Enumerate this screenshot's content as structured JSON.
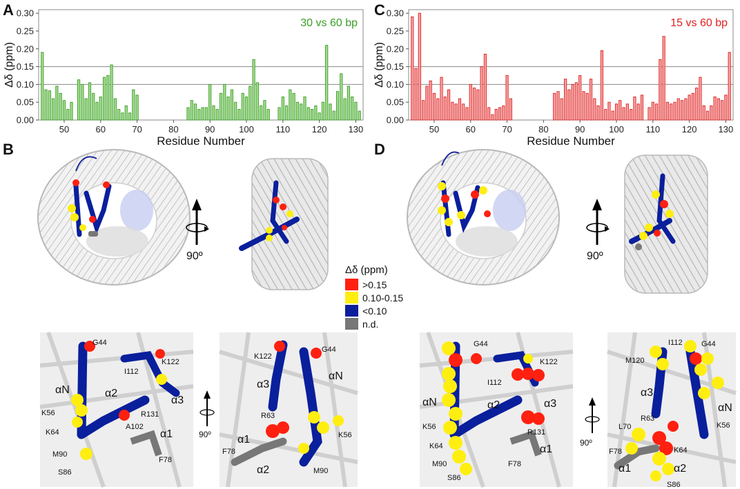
{
  "panels": {
    "A": "A",
    "B": "B",
    "C": "C",
    "D": "D"
  },
  "chart_data": [
    {
      "type": "bar",
      "panel": "A",
      "title": "30 vs 60 bp",
      "ylabel": "Δδ (ppm)",
      "xlabel": "Residue Number",
      "xlim": [
        43,
        132
      ],
      "ylim": [
        0,
        0.31
      ],
      "yticks": [
        "0.00",
        "0.05",
        "0.10",
        "0.15",
        "0.20",
        "0.25",
        "0.30"
      ],
      "xticks": [
        50,
        60,
        70,
        80,
        90,
        100,
        110,
        120,
        130
      ],
      "reference_lines": [
        0.1,
        0.15
      ],
      "color": "#3a9d28",
      "fill": "#a5dc8f",
      "x": [
        44,
        45,
        46,
        47,
        48,
        49,
        50,
        51,
        52,
        54,
        55,
        56,
        57,
        58,
        59,
        60,
        61,
        62,
        63,
        64,
        65,
        66,
        67,
        68,
        69,
        70,
        84,
        85,
        86,
        87,
        88,
        89,
        90,
        91,
        92,
        93,
        94,
        95,
        96,
        97,
        98,
        99,
        100,
        101,
        102,
        103,
        104,
        105,
        106,
        109,
        110,
        111,
        112,
        113,
        114,
        115,
        116,
        117,
        118,
        119,
        120,
        121,
        122,
        123,
        124,
        125,
        126,
        127,
        128,
        129,
        130,
        131
      ],
      "values": [
        0.19,
        0.085,
        0.082,
        0.06,
        0.095,
        0.075,
        0.055,
        0.03,
        0.05,
        0.113,
        0.1,
        0.06,
        0.105,
        0.075,
        0.05,
        0.065,
        0.12,
        0.125,
        0.155,
        0.06,
        0.03,
        0.02,
        0.04,
        0.02,
        0.085,
        0.07,
        0.035,
        0.055,
        0.045,
        0.03,
        0.035,
        0.035,
        0.1,
        0.04,
        0.03,
        0.075,
        0.1,
        0.065,
        0.085,
        0.05,
        0.03,
        0.075,
        0.065,
        0.095,
        0.17,
        0.105,
        0.04,
        0.055,
        0.03,
        0.035,
        0.065,
        0.04,
        0.085,
        0.075,
        0.05,
        0.045,
        0.065,
        0.035,
        0.03,
        0.04,
        0.02,
        0.05,
        0.21,
        0.045,
        0.025,
        0.08,
        0.13,
        0.06,
        0.095,
        0.065,
        0.05,
        0.025
      ]
    },
    {
      "type": "bar",
      "panel": "C",
      "title": "15 vs 60 bp",
      "ylabel": "Δδ (ppm)",
      "xlabel": "Residue Number",
      "xlim": [
        43,
        132
      ],
      "ylim": [
        0,
        0.31
      ],
      "yticks": [
        "0.00",
        "0.05",
        "0.10",
        "0.15",
        "0.20",
        "0.25",
        "0.30"
      ],
      "xticks": [
        50,
        60,
        70,
        80,
        90,
        100,
        110,
        120,
        130
      ],
      "reference_lines": [
        0.1,
        0.15
      ],
      "color": "#e02020",
      "fill": "#f4a6a6",
      "x": [
        44,
        45,
        46,
        47,
        48,
        49,
        50,
        51,
        52,
        53,
        54,
        55,
        56,
        57,
        58,
        59,
        60,
        61,
        62,
        63,
        64,
        65,
        66,
        67,
        68,
        69,
        70,
        71,
        83,
        84,
        85,
        86,
        87,
        88,
        89,
        90,
        91,
        92,
        93,
        94,
        95,
        96,
        97,
        98,
        99,
        100,
        101,
        102,
        103,
        104,
        105,
        106,
        107,
        109,
        110,
        111,
        112,
        113,
        114,
        115,
        116,
        117,
        118,
        119,
        120,
        121,
        122,
        123,
        124,
        125,
        126,
        127,
        128,
        129,
        130,
        131
      ],
      "values": [
        0.29,
        0.145,
        0.3,
        0.055,
        0.095,
        0.11,
        0.075,
        0.06,
        0.12,
        0.065,
        0.085,
        0.05,
        0.045,
        0.06,
        0.045,
        0.035,
        0.1,
        0.09,
        0.085,
        0.15,
        0.185,
        0.035,
        0.015,
        0.03,
        0.035,
        0.04,
        0.125,
        0.06,
        0.075,
        0.08,
        0.06,
        0.115,
        0.085,
        0.1,
        0.105,
        0.125,
        0.08,
        0.075,
        0.115,
        0.06,
        0.04,
        0.195,
        0.03,
        0.05,
        0.025,
        0.045,
        0.055,
        0.035,
        0.045,
        0.03,
        0.065,
        0.045,
        0.07,
        0.035,
        0.05,
        0.045,
        0.17,
        0.235,
        0.05,
        0.045,
        0.05,
        0.06,
        0.055,
        0.06,
        0.07,
        0.075,
        0.09,
        0.12,
        0.04,
        0.025,
        0.04,
        0.065,
        0.06,
        0.055,
        0.07,
        0.19
      ]
    }
  ],
  "legend": {
    "title": "Δδ (ppm)",
    "items": [
      {
        "label": ">0.15",
        "color": "#ff2010"
      },
      {
        "label": "0.10-0.15",
        "color": "#ffee10"
      },
      {
        "label": "<0.10",
        "color": "#0a1f9c"
      },
      {
        "label": "n.d.",
        "color": "#777777"
      }
    ]
  },
  "rotation": {
    "B": "90º",
    "D": "90º",
    "Bz": "90º",
    "Dz": "90º"
  },
  "residue_labels": {
    "B1": {
      "G44": "G44",
      "K122": "K122",
      "I112": "I112",
      "alphaN": "αN",
      "alpha2": "α2",
      "alpha3": "α3",
      "K56": "K56",
      "R131": "R131",
      "A102": "A102",
      "K64": "K64",
      "alpha1": "α1",
      "M90": "M90",
      "F78": "F78",
      "S86": "S86"
    },
    "B2": {
      "K122": "K122",
      "G44": "G44",
      "alphaN": "αN",
      "alpha3": "α3",
      "R63": "R63",
      "alpha1": "α1",
      "K56": "K56",
      "F78": "F78",
      "alpha2": "α2",
      "M90": "M90"
    },
    "D1": {
      "G44": "G44",
      "K122": "K122",
      "I112": "I112",
      "alphaN": "αN",
      "alpha2": "α2",
      "alpha3": "α3",
      "K56": "K56",
      "K64": "K64",
      "R131": "R131",
      "M90": "M90",
      "alpha1": "α1",
      "F78": "F78",
      "S86": "S86"
    },
    "D2": {
      "I112": "I112",
      "G44": "G44",
      "M120": "M120",
      "alpha3": "α3",
      "alphaN": "αN",
      "R63": "R63",
      "L70": "L70",
      "K56": "K56",
      "F78": "F78",
      "K64": "K64",
      "alpha1": "α1",
      "alpha2": "α2",
      "S86": "S86"
    }
  }
}
